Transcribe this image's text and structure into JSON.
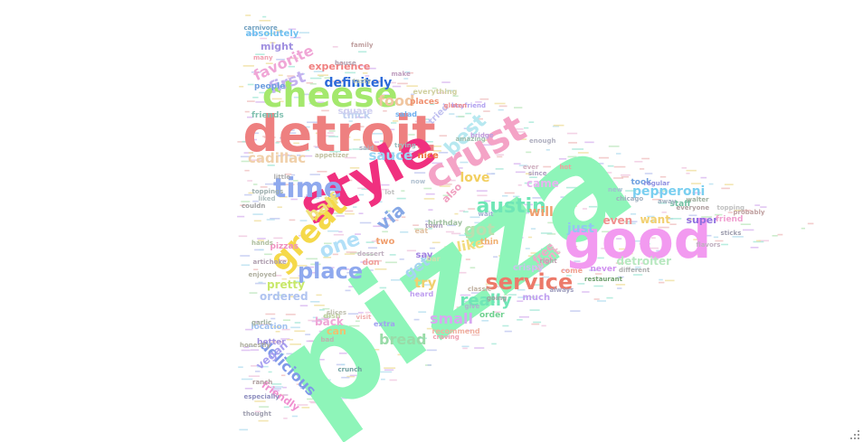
{
  "words": [
    {
      "text": "pizza",
      "color": "#8ef5b9"
    },
    {
      "text": "detroit",
      "color": "#ee8080"
    },
    {
      "text": "style",
      "color": "#f0307f"
    },
    {
      "text": "good",
      "color": "#f29af0"
    },
    {
      "text": "crust",
      "color": "#f4a3c6"
    },
    {
      "text": "cheese",
      "color": "#a4e86d"
    },
    {
      "text": "great",
      "color": "#f5d94a"
    },
    {
      "text": "service",
      "color": "#ec7a6a"
    },
    {
      "text": "time",
      "color": "#8fa9ee"
    },
    {
      "text": "place",
      "color": "#8fa9ee"
    },
    {
      "text": "austin",
      "color": "#6fe6b6"
    },
    {
      "text": "best",
      "color": "#b7e8f0"
    },
    {
      "text": "first",
      "color": "#c4b2f0"
    },
    {
      "text": "favorite",
      "color": "#f0a6d6"
    },
    {
      "text": "definitely",
      "color": "#2d6ad9"
    },
    {
      "text": "food",
      "color": "#f0c6a0"
    },
    {
      "text": "sauce",
      "color": "#9bd6f4"
    },
    {
      "text": "cadillac",
      "color": "#f0d0aa"
    },
    {
      "text": "half",
      "color": "#f0e17a"
    },
    {
      "text": "one",
      "color": "#b2e0f8"
    },
    {
      "text": "via",
      "color": "#86a8e6"
    },
    {
      "text": "got",
      "color": "#b9e0b0"
    },
    {
      "text": "really",
      "color": "#6fe6b6"
    },
    {
      "text": "small",
      "color": "#d7a8f0"
    },
    {
      "text": "delicious",
      "color": "#7f99e8"
    },
    {
      "text": "bread",
      "color": "#99dba8"
    },
    {
      "text": "like",
      "color": "#f2dc7e"
    },
    {
      "text": "get",
      "color": "#a6d4f0"
    },
    {
      "text": "try",
      "color": "#f0d070"
    },
    {
      "text": "love",
      "color": "#f2cf60"
    },
    {
      "text": "pepperoni",
      "color": "#7acff0"
    },
    {
      "text": "just",
      "color": "#91c8f0"
    },
    {
      "text": "even",
      "color": "#f09090"
    },
    {
      "text": "will",
      "color": "#f0a070"
    },
    {
      "text": "want",
      "color": "#f2d070"
    },
    {
      "text": "free",
      "color": "#f2a8c8"
    },
    {
      "text": "came",
      "color": "#e8b4f0"
    },
    {
      "text": "went",
      "color": "#f0b0c8"
    },
    {
      "text": "detroiter",
      "color": "#b8e8c0"
    },
    {
      "text": "ordered",
      "color": "#b0c4f0"
    },
    {
      "text": "pretty",
      "color": "#c8e86a"
    },
    {
      "text": "back",
      "color": "#f0a6d6"
    },
    {
      "text": "can",
      "color": "#f0c070"
    },
    {
      "text": "vegan",
      "color": "#a8a0f0"
    },
    {
      "text": "friendly",
      "color": "#f090d0"
    },
    {
      "text": "experience",
      "color": "#f08080"
    },
    {
      "text": "might",
      "color": "#a090e0"
    },
    {
      "text": "absolutely",
      "color": "#70c0f0"
    },
    {
      "text": "thick",
      "color": "#c0d0f0"
    },
    {
      "text": "square",
      "color": "#d0d0f0"
    },
    {
      "text": "nice",
      "color": "#f07040"
    },
    {
      "text": "people",
      "color": "#70a0e0"
    },
    {
      "text": "friends",
      "color": "#80c0b0"
    },
    {
      "text": "say",
      "color": "#a080e0"
    },
    {
      "text": "two",
      "color": "#f0a070"
    },
    {
      "text": "much",
      "color": "#c0a0f0"
    },
    {
      "text": "order",
      "color": "#70d090"
    },
    {
      "text": "crispy",
      "color": "#d0c0f0"
    },
    {
      "text": "thin",
      "color": "#f0b070"
    },
    {
      "text": "never",
      "color": "#d090f0"
    },
    {
      "text": "super",
      "color": "#9070e0"
    },
    {
      "text": "took",
      "color": "#70a0e0"
    },
    {
      "text": "staff",
      "color": "#70c0a0"
    },
    {
      "text": "also",
      "color": "#f0a0c0"
    },
    {
      "text": "tried",
      "color": "#c0c0f0"
    },
    {
      "text": "places",
      "color": "#f09070"
    },
    {
      "text": "everything",
      "color": "#d0d0a0"
    },
    {
      "text": "recommend",
      "color": "#f0b0a0"
    },
    {
      "text": "location",
      "color": "#a0c0f0"
    },
    {
      "text": "better",
      "color": "#a090e0"
    },
    {
      "text": "pizzas",
      "color": "#f090c0"
    },
    {
      "text": "salad",
      "color": "#70b0f0"
    },
    {
      "text": "dish",
      "color": "#c0d0a0"
    },
    {
      "text": "eat",
      "color": "#e0c0a0"
    },
    {
      "text": "don",
      "color": "#f0a0a0"
    },
    {
      "text": "bar",
      "color": "#d0e0b0"
    },
    {
      "text": "come",
      "color": "#f0a090"
    },
    {
      "text": "extra",
      "color": "#a0a0f0"
    },
    {
      "text": "friend",
      "color": "#f0a0d0"
    },
    {
      "text": "restaurant",
      "color": "#70a070"
    },
    {
      "text": "regular",
      "color": "#9090e0"
    },
    {
      "text": "topping",
      "color": "#c0c0c0"
    },
    {
      "text": "visit",
      "color": "#f0b0b0"
    },
    {
      "text": "heard",
      "color": "#c0a0f0"
    },
    {
      "text": "give",
      "color": "#b0b0d0"
    },
    {
      "text": "crunch",
      "color": "#70a0a0"
    },
    {
      "text": "especially",
      "color": "#9090c0"
    },
    {
      "text": "craving",
      "color": "#f0a0b0"
    },
    {
      "text": "bridge",
      "color": "#c0a0e0"
    },
    {
      "text": "boyfriend",
      "color": "#b0a0f0"
    },
    {
      "text": "gluten",
      "color": "#f09090"
    },
    {
      "text": "many",
      "color": "#f0a0b0"
    },
    {
      "text": "carnivore",
      "color": "#70a0c0"
    },
    {
      "text": "different",
      "color": "#b0b0b0"
    },
    {
      "text": "birthday",
      "color": "#a0c0a0"
    },
    {
      "text": "wait",
      "color": "#a0b0d0"
    },
    {
      "text": "now",
      "color": "#b0c0d0"
    },
    {
      "text": "lot",
      "color": "#c0c0c0"
    },
    {
      "text": "said",
      "color": "#b0b0c0"
    },
    {
      "text": "since",
      "color": "#b0a0c0"
    },
    {
      "text": "ever",
      "color": "#d0b0c0"
    },
    {
      "text": "new",
      "color": "#a0c0d0"
    },
    {
      "text": "hot",
      "color": "#f0a0a0"
    },
    {
      "text": "ranch",
      "color": "#b0a0a0"
    },
    {
      "text": "garlic",
      "color": "#a0b0a0"
    },
    {
      "text": "enjoyed",
      "color": "#b0b0a0"
    },
    {
      "text": "family",
      "color": "#c0a0a0"
    },
    {
      "text": "tasty",
      "color": "#b0c0b0"
    },
    {
      "text": "always",
      "color": "#a0a0c0"
    },
    {
      "text": "classic",
      "color": "#c0b0a0"
    },
    {
      "text": "right",
      "color": "#c0a0b0"
    },
    {
      "text": "going",
      "color": "#a0a0a0"
    },
    {
      "text": "away",
      "color": "#a0b0c0"
    },
    {
      "text": "flavors",
      "color": "#c0b0c0"
    },
    {
      "text": "sticks",
      "color": "#a0a0b0"
    },
    {
      "text": "artichoke",
      "color": "#b0a0b0"
    },
    {
      "text": "hands",
      "color": "#b0c0a0"
    },
    {
      "text": "toppings",
      "color": "#a0b0b0"
    },
    {
      "text": "slices",
      "color": "#c0c0b0"
    },
    {
      "text": "bad",
      "color": "#c0b0b0"
    },
    {
      "text": "little",
      "color": "#b0b0b0"
    },
    {
      "text": "appetizer",
      "color": "#c0c0a0"
    },
    {
      "text": "liked",
      "color": "#b0c0c0"
    },
    {
      "text": "amazing",
      "color": "#a0c0b0"
    },
    {
      "text": "make",
      "color": "#c0a0c0"
    },
    {
      "text": "everyone",
      "color": "#b0a0a0"
    },
    {
      "text": "walter",
      "color": "#a0b0a0"
    },
    {
      "text": "honestly",
      "color": "#b0b0a0"
    },
    {
      "text": "thought",
      "color": "#a0a0b0"
    },
    {
      "text": "couldn",
      "color": "#a0a0a0"
    },
    {
      "text": "house",
      "color": "#b0a0b0"
    },
    {
      "text": "chicago",
      "color": "#a0b0c0"
    },
    {
      "text": "probably",
      "color": "#c0a0a0"
    },
    {
      "text": "enough",
      "color": "#b0b0c0"
    },
    {
      "text": "trying",
      "color": "#a0c0c0"
    },
    {
      "text": "dessert",
      "color": "#c0b0c0"
    },
    {
      "text": "town",
      "color": "#b0a0c0"
    }
  ]
}
